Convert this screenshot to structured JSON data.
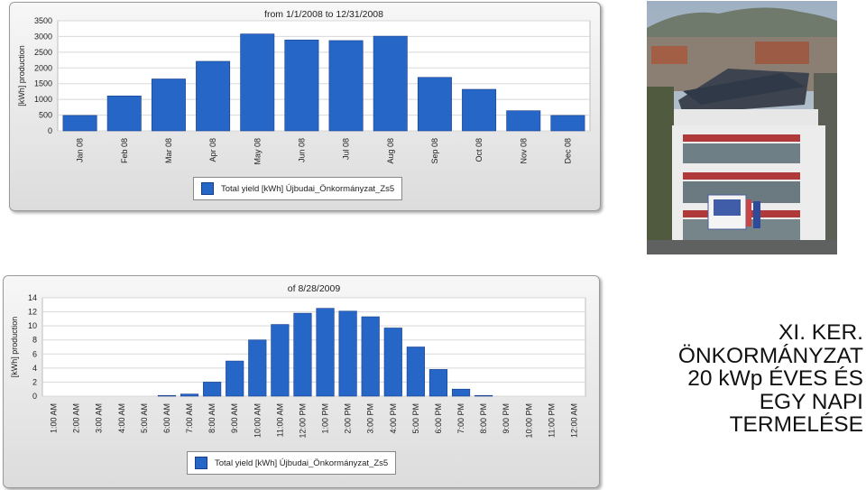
{
  "colors": {
    "bar": "#2566c6",
    "bar_edge": "#1a3f8a",
    "grid": "#d8d8d8"
  },
  "caption": {
    "line1": "XI. KER.",
    "line2": "ÖNKORMÁNYZAT",
    "line3": "20 kWp ÉVES ÉS",
    "line4": "EGY NAPI",
    "line5": "TERMELÉSE"
  },
  "chart_data": [
    {
      "type": "bar",
      "title": "from 1/1/2008 to 12/31/2008",
      "xlabel": "",
      "ylabel": "[kWh] production",
      "ylim": [
        0,
        3500
      ],
      "yticks": [
        "0",
        "500",
        "1000",
        "1500",
        "2000",
        "2500",
        "3000",
        "3500"
      ],
      "categories": [
        "Jan 08",
        "Feb 08",
        "Mar 08",
        "Apr 08",
        "May 08",
        "Jun 08",
        "Jul 08",
        "Aug 08",
        "Sep 08",
        "Oct 08",
        "Nov 08",
        "Dec 08"
      ],
      "series": [
        {
          "name": "Total yield [kWh] Újbudai_Önkormányzat_Zs5",
          "values": [
            490,
            1110,
            1650,
            2210,
            3080,
            2890,
            2870,
            3010,
            1700,
            1320,
            640,
            490
          ]
        }
      ],
      "grid": true,
      "legend": "bottom"
    },
    {
      "type": "bar",
      "title": "of 8/28/2009",
      "xlabel": "",
      "ylabel": "[kWh] production",
      "ylim": [
        0,
        14
      ],
      "yticks": [
        "0",
        "2",
        "4",
        "6",
        "8",
        "10",
        "12",
        "14"
      ],
      "categories": [
        "1:00 AM",
        "2:00 AM",
        "3:00 AM",
        "4:00 AM",
        "5:00 AM",
        "6:00 AM",
        "7:00 AM",
        "8:00 AM",
        "9:00 AM",
        "10:00 AM",
        "11:00 AM",
        "12:00 PM",
        "1:00 PM",
        "2:00 PM",
        "3:00 PM",
        "4:00 PM",
        "5:00 PM",
        "6:00 PM",
        "7:00 PM",
        "8:00 PM",
        "9:00 PM",
        "10:00 PM",
        "11:00 PM",
        "12:00 AM"
      ],
      "series": [
        {
          "name": "Total yield [kWh] Újbudai_Önkormányzat_Zs5",
          "values": [
            0,
            0,
            0,
            0,
            0,
            0.1,
            0.3,
            2.0,
            5.0,
            8.0,
            10.2,
            11.8,
            12.5,
            12.1,
            11.3,
            9.7,
            7.0,
            3.8,
            1.0,
            0.1,
            0,
            0,
            0,
            0
          ]
        }
      ],
      "grid": true,
      "legend": "bottom"
    }
  ]
}
